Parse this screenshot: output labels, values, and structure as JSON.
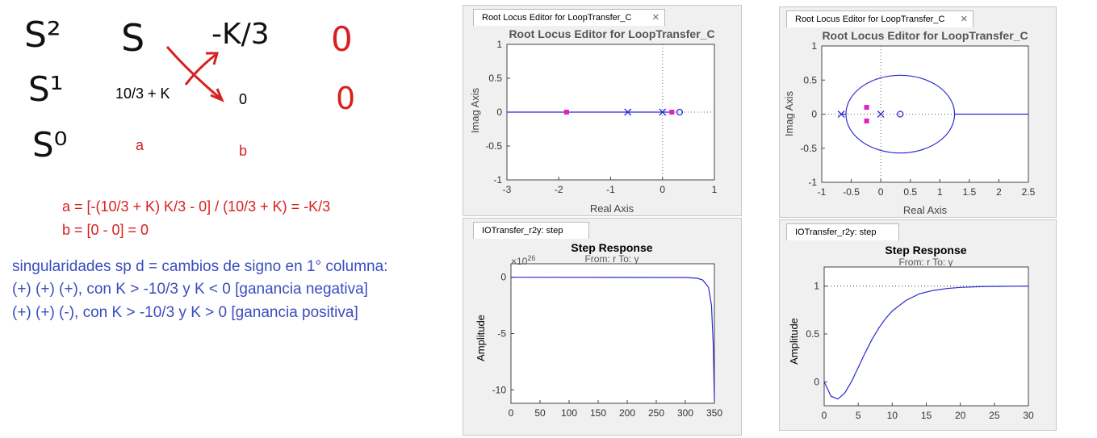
{
  "notes": {
    "row_s2": "S²",
    "row_s1": "S¹",
    "row_s0": "S⁰",
    "col1_top": "S",
    "col2_top": "-K/3",
    "col3_top": "0",
    "col1_mid": "10/3 + K",
    "col2_mid": "0",
    "col3_mid": "0",
    "label_a": "a",
    "label_b": "b",
    "eq_a": "a = [-(10/3 + K) K/3 - 0] / (10/3 + K) = -K/3",
    "eq_b": "b = [0 - 0] = 0",
    "sing_1": "singularidades sp d = cambios de signo en 1° columna:",
    "sing_2": "(+) (+) (+), con K > -10/3 y K < 0 [ganancia negativa]",
    "sing_3": "(+) (+) (-), con K > -10/3 y K > 0 [ganancia positiva]"
  },
  "windows": {
    "rl_left": {
      "tab": "Root Locus Editor for LoopTransfer_C",
      "title": "Root Locus Editor for LoopTransfer_C",
      "xlabel": "Real Axis",
      "ylabel": "Imag Axis"
    },
    "rl_right": {
      "tab": "Root Locus Editor for LoopTransfer_C",
      "title": "Root Locus Editor for LoopTransfer_C",
      "xlabel": "Real Axis",
      "ylabel": "Imag Axis"
    },
    "step_left": {
      "tab": "IOTransfer_r2y: step",
      "title": "Step Response",
      "subtitle": "From: r  To: y",
      "ylabel": "Amplitude",
      "exponent": "×10",
      "exponent_power": "26"
    },
    "step_right": {
      "tab": "IOTransfer_r2y: step",
      "title": "Step Response",
      "subtitle": "From: r  To: y",
      "ylabel": "Amplitude"
    },
    "close": "✕"
  },
  "chart_data": [
    {
      "type": "scatter",
      "name_hint": "root-locus-left",
      "xlim": [
        -3,
        1
      ],
      "ylim": [
        -1,
        1
      ],
      "xticks": [
        "-3",
        "-2",
        "-1",
        "0",
        "1"
      ],
      "yticks": [
        "1",
        "0.5",
        "0",
        "-0.5",
        "-1"
      ],
      "grid": false,
      "poles": [
        [
          -0.67,
          0
        ],
        [
          0,
          0
        ]
      ],
      "zeros": [
        [
          0.33,
          0
        ]
      ],
      "closed_loop_poles": [
        [
          -1.85,
          0
        ],
        [
          0.18,
          0
        ]
      ],
      "locus_segments": [
        [
          [
            -3,
            0
          ],
          [
            0.18,
            0
          ]
        ]
      ]
    },
    {
      "type": "scatter",
      "name_hint": "root-locus-right",
      "xlim": [
        -1,
        2.5
      ],
      "ylim": [
        -1,
        1
      ],
      "xticks": [
        "-1",
        "-0.5",
        "0",
        "0.5",
        "1",
        "1.5",
        "2",
        "2.5"
      ],
      "yticks": [
        "1",
        "0.5",
        "0",
        "-0.5",
        "-1"
      ],
      "grid": false,
      "poles": [
        [
          -0.67,
          0
        ],
        [
          0,
          0
        ]
      ],
      "zeros": [
        [
          0.33,
          0
        ]
      ],
      "closed_loop_poles": [
        [
          -0.24,
          0.1
        ],
        [
          -0.24,
          -0.1
        ]
      ],
      "circle": {
        "center": [
          0.33,
          0
        ],
        "radius": 0.92,
        "ry": 0.57
      }
    },
    {
      "type": "line",
      "name_hint": "step-left",
      "xlim": [
        0,
        350
      ],
      "ylim": [
        -11.2,
        1.2
      ],
      "xticks": [
        "0",
        "50",
        "100",
        "150",
        "200",
        "250",
        "300",
        "350"
      ],
      "yticks": [
        "0",
        "-5",
        "-10"
      ],
      "x": [
        0,
        300,
        320,
        330,
        340,
        345,
        348,
        350
      ],
      "y": [
        0,
        -0.02,
        -0.08,
        -0.25,
        -0.9,
        -2.5,
        -6,
        -11
      ]
    },
    {
      "type": "line",
      "name_hint": "step-right",
      "xlim": [
        0,
        30
      ],
      "ylim": [
        -0.25,
        1.2
      ],
      "xticks": [
        "0",
        "5",
        "10",
        "15",
        "20",
        "25",
        "30"
      ],
      "yticks": [
        "1",
        "0.5",
        "0"
      ],
      "reference": 1,
      "x": [
        0,
        1,
        2,
        3,
        4,
        5,
        6,
        7,
        8,
        9,
        10,
        12,
        14,
        16,
        18,
        20,
        22,
        24,
        26,
        28,
        30
      ],
      "y": [
        0,
        -0.15,
        -0.18,
        -0.12,
        0.0,
        0.15,
        0.3,
        0.44,
        0.56,
        0.66,
        0.74,
        0.85,
        0.92,
        0.955,
        0.975,
        0.987,
        0.993,
        0.997,
        0.998,
        0.999,
        1.0
      ]
    }
  ]
}
